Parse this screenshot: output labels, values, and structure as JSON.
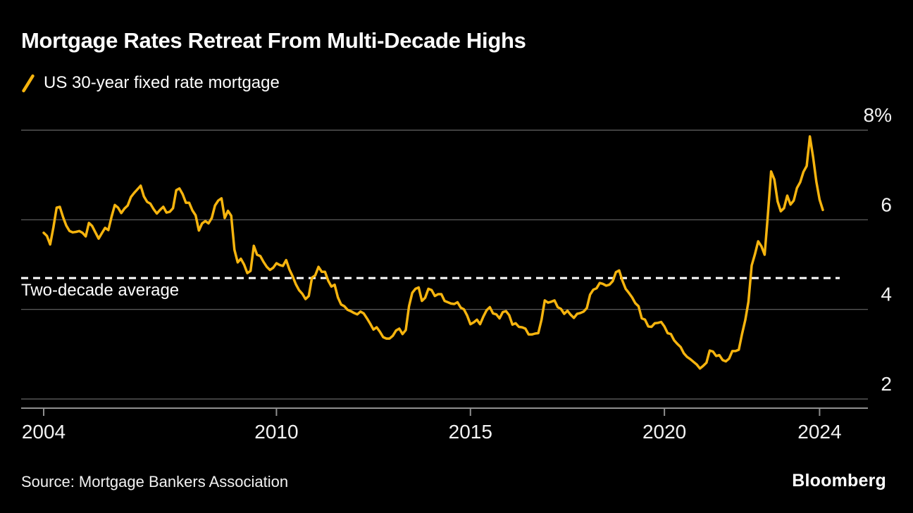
{
  "page": {
    "background": "#000000"
  },
  "header": {
    "title": "Mortgage Rates Retreat From Multi-Decade Highs",
    "legend_label": "US 30-year fixed rate mortgage",
    "legend_icon": "slash-icon"
  },
  "footer": {
    "source": "Source: Mortgage Bankers Association",
    "brand": "Bloomberg"
  },
  "chart_data": {
    "type": "line",
    "title": "Mortgage Rates Retreat From Multi-Decade Highs",
    "xlabel": "",
    "ylabel": "",
    "grid": "horizontal",
    "legend_position": "top-left",
    "ylim": [
      2,
      8
    ],
    "x_range": [
      2004,
      2024.1
    ],
    "colors": {
      "background": "#000000",
      "line": "#F6B40E",
      "grid": "#666666",
      "axis": "#8F8F8F",
      "average_line": "#FFFFFF",
      "text": "#F2F2F2"
    },
    "y_ticks": [
      {
        "label": "8%",
        "value": 8
      },
      {
        "label": "6",
        "value": 6
      },
      {
        "label": "4",
        "value": 4
      },
      {
        "label": "2",
        "value": 2
      }
    ],
    "x_ticks": [
      {
        "label": "2004",
        "year": 2004
      },
      {
        "label": "2010",
        "year": 2010
      },
      {
        "label": "2015",
        "year": 2015
      },
      {
        "label": "2020",
        "year": 2020
      },
      {
        "label": "2024",
        "year": 2024
      }
    ],
    "average_line": {
      "label": "Two-decade average",
      "value": 4.7,
      "style": "dashed"
    },
    "series": [
      {
        "name": "US 30-year fixed rate mortgage",
        "color": "#F6B40E",
        "start_year": 2004,
        "interval_months": 1,
        "values": [
          5.71,
          5.64,
          5.45,
          5.83,
          6.27,
          6.29,
          6.06,
          5.87,
          5.75,
          5.72,
          5.73,
          5.75,
          5.71,
          5.63,
          5.93,
          5.86,
          5.72,
          5.58,
          5.7,
          5.82,
          5.77,
          6.07,
          6.33,
          6.27,
          6.15,
          6.25,
          6.32,
          6.51,
          6.6,
          6.68,
          6.76,
          6.52,
          6.4,
          6.36,
          6.24,
          6.14,
          6.22,
          6.29,
          6.16,
          6.18,
          6.26,
          6.66,
          6.7,
          6.57,
          6.38,
          6.38,
          6.21,
          6.1,
          5.76,
          5.92,
          5.97,
          5.92,
          6.04,
          6.32,
          6.43,
          6.48,
          6.04,
          6.2,
          6.09,
          5.33,
          5.05,
          5.13,
          5.0,
          4.81,
          4.86,
          5.42,
          5.22,
          5.19,
          5.06,
          4.95,
          4.88,
          4.93,
          5.03,
          4.99,
          4.97,
          5.1,
          4.89,
          4.74,
          4.56,
          4.43,
          4.35,
          4.23,
          4.3,
          4.71,
          4.76,
          4.95,
          4.84,
          4.84,
          4.64,
          4.51,
          4.55,
          4.27,
          4.11,
          4.07,
          3.99,
          3.96,
          3.92,
          3.89,
          3.95,
          3.91,
          3.8,
          3.68,
          3.55,
          3.6,
          3.5,
          3.38,
          3.35,
          3.35,
          3.41,
          3.53,
          3.57,
          3.45,
          3.54,
          4.07,
          4.37,
          4.46,
          4.49,
          4.19,
          4.26,
          4.46,
          4.43,
          4.3,
          4.34,
          4.34,
          4.19,
          4.16,
          4.13,
          4.12,
          4.16,
          4.04,
          4.0,
          3.86,
          3.67,
          3.71,
          3.77,
          3.67,
          3.84,
          3.98,
          4.05,
          3.91,
          3.89,
          3.8,
          3.94,
          3.96,
          3.87,
          3.66,
          3.69,
          3.61,
          3.6,
          3.57,
          3.44,
          3.44,
          3.46,
          3.47,
          3.77,
          4.2,
          4.15,
          4.17,
          4.2,
          4.05,
          4.01,
          3.9,
          3.97,
          3.88,
          3.81,
          3.9,
          3.92,
          3.95,
          4.03,
          4.33,
          4.44,
          4.47,
          4.59,
          4.57,
          4.53,
          4.55,
          4.63,
          4.83,
          4.87,
          4.64,
          4.46,
          4.37,
          4.27,
          4.14,
          4.07,
          3.8,
          3.77,
          3.62,
          3.61,
          3.69,
          3.7,
          3.72,
          3.62,
          3.47,
          3.45,
          3.31,
          3.23,
          3.16,
          3.02,
          2.94,
          2.89,
          2.83,
          2.77,
          2.68,
          2.74,
          2.81,
          3.08,
          3.06,
          2.96,
          2.98,
          2.87,
          2.84,
          2.9,
          3.07,
          3.07,
          3.1,
          3.45,
          3.76,
          4.17,
          4.98,
          5.23,
          5.52,
          5.41,
          5.22,
          6.11,
          7.08,
          6.9,
          6.41,
          6.19,
          6.26,
          6.54,
          6.34,
          6.43,
          6.71,
          6.84,
          7.07,
          7.2,
          7.86,
          7.4,
          6.85,
          6.45,
          6.22
        ]
      }
    ]
  }
}
